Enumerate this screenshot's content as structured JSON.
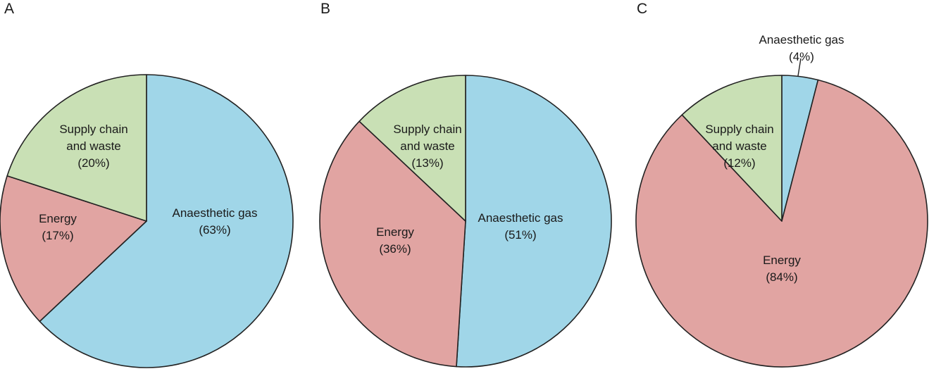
{
  "figure": {
    "panels": [
      "A",
      "B",
      "C"
    ]
  },
  "chart_data": [
    {
      "type": "pie",
      "panel": "A",
      "title": "A",
      "categories": [
        "Anaesthetic gas",
        "Energy",
        "Supply chain and waste"
      ],
      "values": [
        63,
        17,
        20
      ],
      "colors": [
        "#a0d6e8",
        "#e1a4a2",
        "#c9e0b5"
      ],
      "labels": [
        {
          "lines": [
            "Anaesthetic gas",
            "(63%)"
          ]
        },
        {
          "lines": [
            "Energy",
            "(17%)"
          ]
        },
        {
          "lines": [
            "Supply chain",
            "and waste",
            "(20%)"
          ]
        }
      ]
    },
    {
      "type": "pie",
      "panel": "B",
      "title": "B",
      "categories": [
        "Anaesthetic gas",
        "Energy",
        "Supply chain and waste"
      ],
      "values": [
        51,
        36,
        13
      ],
      "colors": [
        "#a0d6e8",
        "#e1a4a2",
        "#c9e0b5"
      ],
      "labels": [
        {
          "lines": [
            "Anaesthetic gas",
            "(51%)"
          ]
        },
        {
          "lines": [
            "Energy",
            "(36%)"
          ]
        },
        {
          "lines": [
            "Supply chain",
            "and waste",
            "(13%)"
          ]
        }
      ]
    },
    {
      "type": "pie",
      "panel": "C",
      "title": "C",
      "categories": [
        "Anaesthetic gas",
        "Energy",
        "Supply chain and waste"
      ],
      "values": [
        4,
        84,
        12
      ],
      "colors": [
        "#a0d6e8",
        "#e1a4a2",
        "#c9e0b5"
      ],
      "labels": [
        {
          "lines": [
            "Anaesthetic gas",
            "(4%)"
          ],
          "callout": true
        },
        {
          "lines": [
            "Energy",
            "(84%)"
          ]
        },
        {
          "lines": [
            "Supply chain",
            "and waste",
            "(12%)"
          ]
        }
      ]
    }
  ]
}
